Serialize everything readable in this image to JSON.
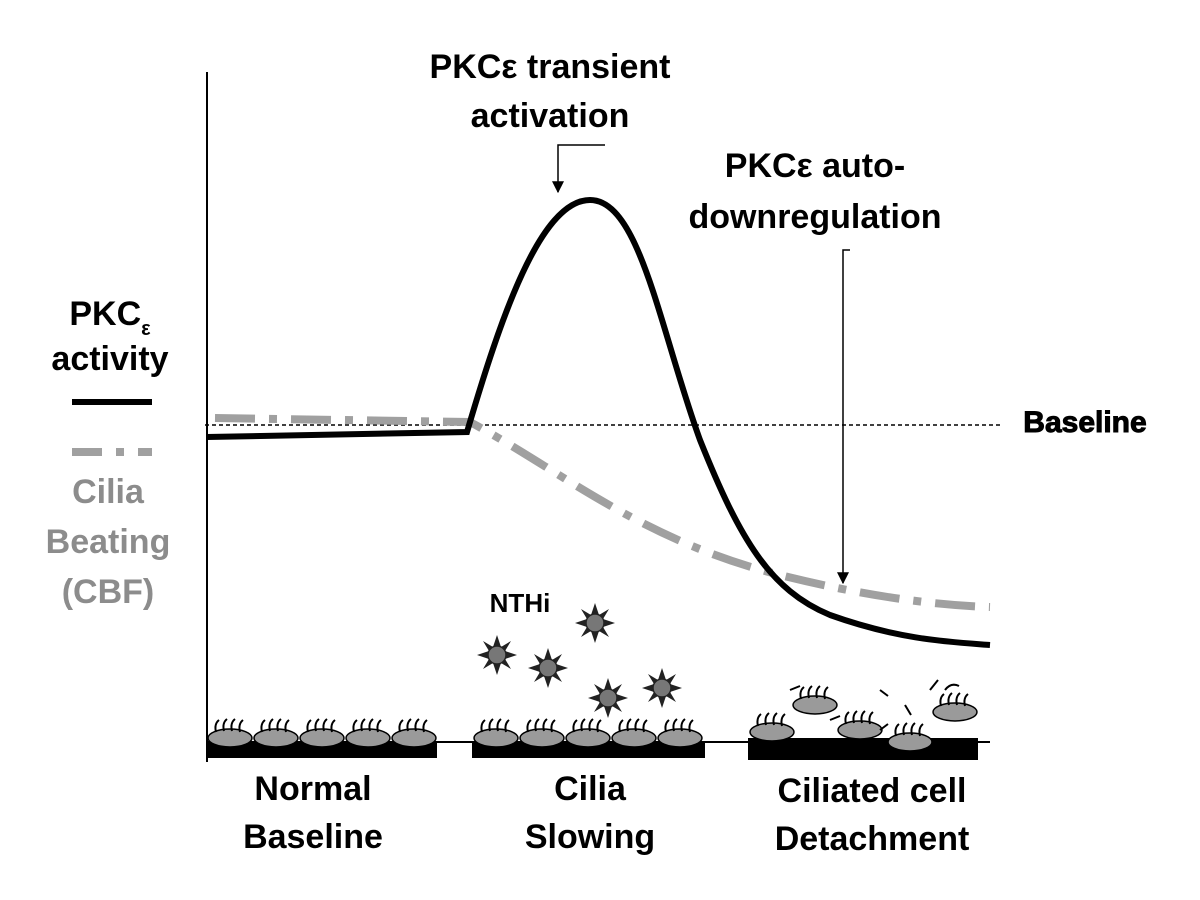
{
  "annotations": {
    "transient": [
      "PKCε transient",
      "activation"
    ],
    "downregulation": [
      "PKCε auto-",
      "downregulation"
    ],
    "baseline": "Baseline",
    "pathogen": "NTHi"
  },
  "legend": {
    "pkc": {
      "label": "PKC",
      "subscript": "ε",
      "line2": "activity"
    },
    "cilia": [
      "Cilia",
      "Beating",
      "(CBF)"
    ]
  },
  "stages": [
    [
      "Normal",
      "Baseline"
    ],
    [
      "Cilia",
      "Slowing"
    ],
    [
      "Ciliated cell",
      "Detachment"
    ]
  ]
}
